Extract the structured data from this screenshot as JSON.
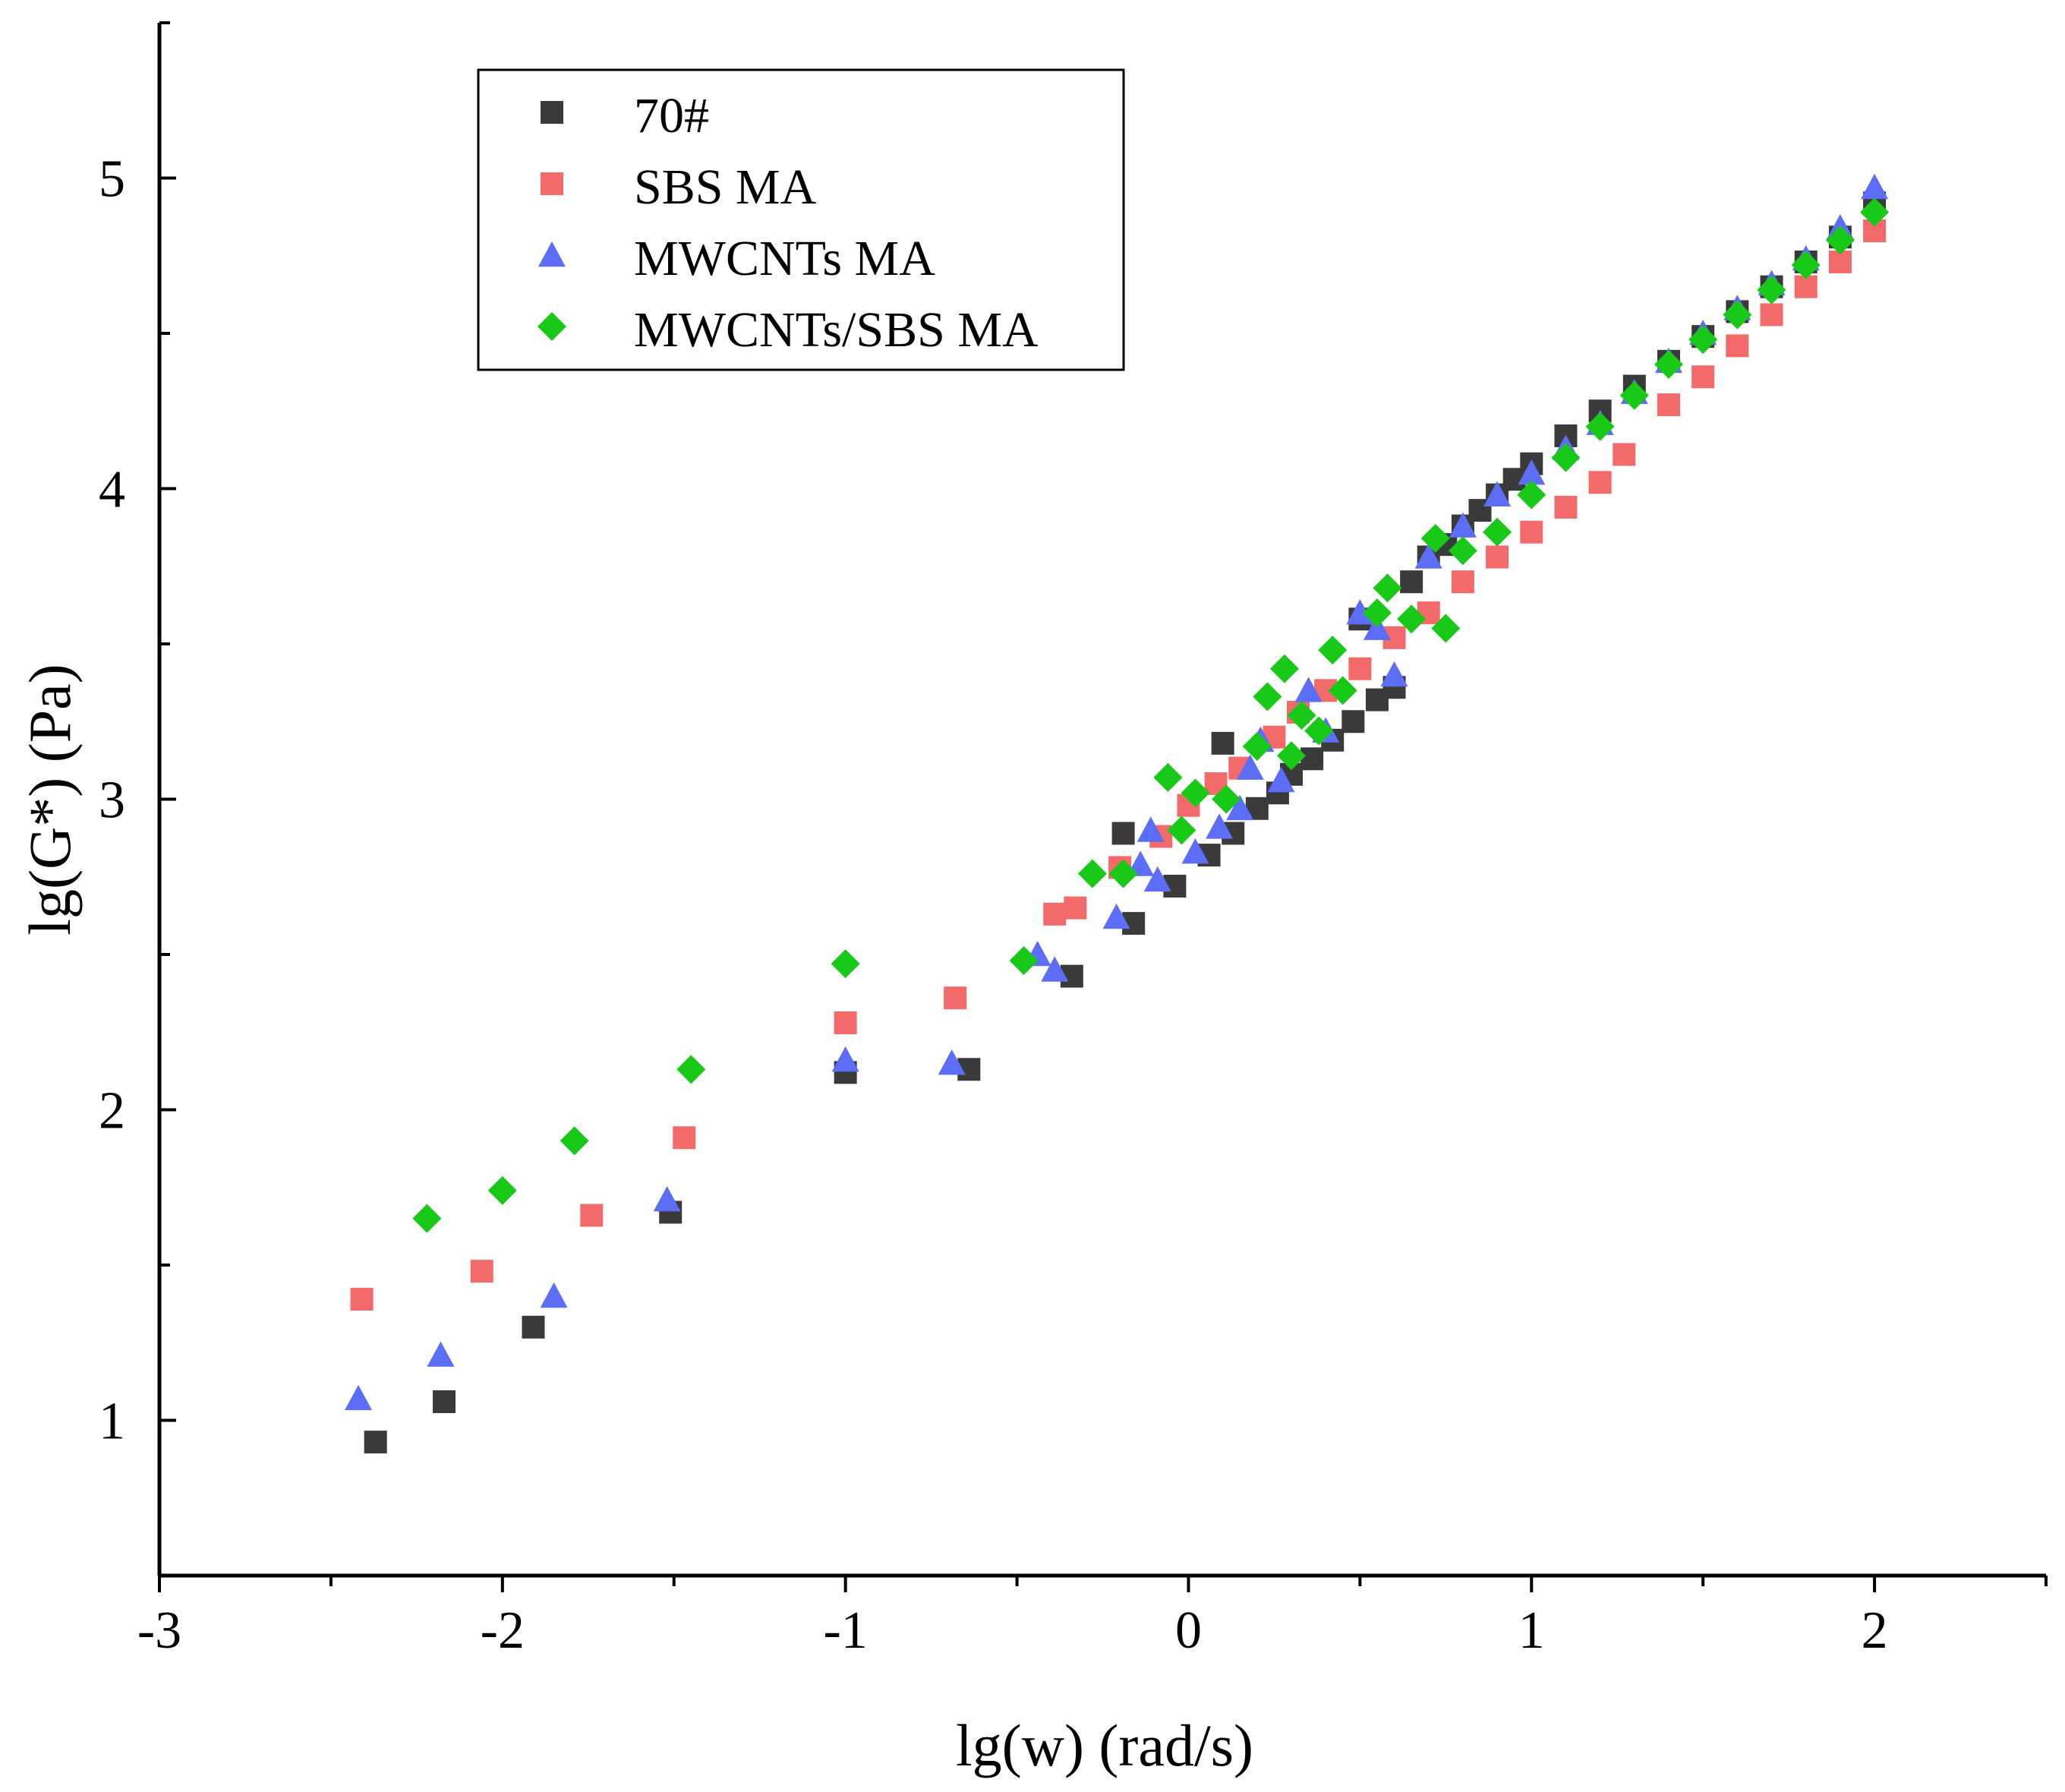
{
  "chart_data": {
    "type": "scatter",
    "xlabel": "lg(w)  (rad/s)",
    "ylabel": "lg(G*) (Pa)",
    "xlim": [
      -3,
      2.5
    ],
    "ylim": [
      0.5,
      5.5
    ],
    "xticks": [
      -3,
      -2,
      -1,
      0,
      1,
      2
    ],
    "xtick_labels": [
      "-3",
      "-2",
      "-1",
      "0",
      "1",
      "2"
    ],
    "yticks": [
      1,
      2,
      3,
      4,
      5
    ],
    "ytick_labels": [
      "1",
      "2",
      "3",
      "4",
      "5"
    ],
    "legend_position": "top-left",
    "series": [
      {
        "name": "70#",
        "marker": "square",
        "color": "#3a3a3a",
        "x": [
          -2.37,
          -2.17,
          -1.91,
          -1.51,
          -1.0,
          -0.64,
          -0.34,
          -0.16,
          -0.19,
          -0.04,
          0.06,
          0.1,
          0.13,
          0.2,
          0.26,
          0.3,
          0.36,
          0.42,
          0.48,
          0.5,
          0.55,
          0.6,
          0.65,
          0.7,
          0.75,
          0.8,
          0.85,
          0.9,
          0.95,
          1.0,
          1.1,
          1.2,
          1.3,
          1.4,
          1.5,
          1.6,
          1.7,
          1.8,
          1.9,
          2.0
        ],
        "y": [
          0.93,
          1.06,
          1.3,
          1.67,
          2.12,
          2.13,
          2.43,
          2.6,
          2.89,
          2.72,
          2.82,
          3.18,
          2.89,
          2.97,
          3.02,
          3.08,
          3.13,
          3.19,
          3.25,
          3.58,
          3.32,
          3.36,
          3.7,
          3.78,
          3.82,
          3.88,
          3.93,
          3.98,
          4.03,
          4.08,
          4.17,
          4.25,
          4.33,
          4.41,
          4.49,
          4.57,
          4.65,
          4.73,
          4.81,
          4.92
        ]
      },
      {
        "name": "SBS MA",
        "marker": "square",
        "color": "#f26a6a",
        "x": [
          -2.41,
          -2.06,
          -1.74,
          -1.47,
          -1.0,
          -0.68,
          -0.39,
          -0.33,
          -0.2,
          -0.08,
          0.0,
          0.08,
          0.15,
          0.25,
          0.32,
          0.4,
          0.5,
          0.6,
          0.7,
          0.8,
          0.9,
          1.0,
          1.1,
          1.2,
          1.27,
          1.4,
          1.5,
          1.6,
          1.7,
          1.8,
          1.9,
          2.0
        ],
        "y": [
          1.39,
          1.48,
          1.66,
          1.91,
          2.28,
          2.36,
          2.63,
          2.65,
          2.78,
          2.88,
          2.98,
          3.05,
          3.1,
          3.2,
          3.28,
          3.35,
          3.42,
          3.52,
          3.6,
          3.7,
          3.78,
          3.86,
          3.94,
          4.02,
          4.11,
          4.27,
          4.36,
          4.46,
          4.56,
          4.65,
          4.73,
          4.83
        ]
      },
      {
        "name": "MWCNTs MA",
        "marker": "triangle",
        "color": "#5b6ef5",
        "x": [
          -2.42,
          -2.18,
          -1.85,
          -1.52,
          -1.0,
          -0.69,
          -0.44,
          -0.39,
          -0.21,
          -0.14,
          -0.11,
          -0.09,
          0.02,
          0.09,
          0.15,
          0.18,
          0.21,
          0.27,
          0.35,
          0.4,
          0.5,
          0.55,
          0.6,
          0.7,
          0.8,
          0.9,
          1.0,
          1.1,
          1.2,
          1.3,
          1.4,
          1.5,
          1.6,
          1.7,
          1.8,
          1.9,
          2.0
        ],
        "y": [
          1.07,
          1.21,
          1.4,
          1.71,
          2.16,
          2.15,
          2.5,
          2.45,
          2.62,
          2.79,
          2.9,
          2.74,
          2.83,
          2.91,
          2.97,
          3.1,
          3.19,
          3.06,
          3.35,
          3.22,
          3.6,
          3.55,
          3.4,
          3.78,
          3.88,
          3.98,
          4.05,
          4.13,
          4.21,
          4.31,
          4.41,
          4.5,
          4.58,
          4.66,
          4.74,
          4.84,
          4.97
        ]
      },
      {
        "name": "MWCNTs/SBS MA",
        "marker": "diamond",
        "color": "#18c918",
        "x": [
          -2.22,
          -2.0,
          -1.79,
          -1.45,
          -1.0,
          -0.48,
          -0.28,
          -0.19,
          -0.06,
          -0.02,
          0.02,
          0.11,
          0.2,
          0.23,
          0.28,
          0.3,
          0.33,
          0.38,
          0.42,
          0.45,
          0.55,
          0.58,
          0.65,
          0.72,
          0.75,
          0.8,
          0.9,
          1.0,
          1.1,
          1.2,
          1.3,
          1.4,
          1.5,
          1.6,
          1.7,
          1.8,
          1.9,
          2.0
        ],
        "y": [
          1.65,
          1.74,
          1.9,
          2.13,
          2.47,
          2.48,
          2.76,
          2.76,
          3.07,
          2.9,
          3.02,
          3.0,
          3.17,
          3.33,
          3.42,
          3.14,
          3.27,
          3.22,
          3.48,
          3.35,
          3.6,
          3.68,
          3.58,
          3.84,
          3.55,
          3.8,
          3.86,
          3.98,
          4.1,
          4.2,
          4.3,
          4.4,
          4.48,
          4.56,
          4.64,
          4.72,
          4.8,
          4.89
        ]
      }
    ]
  }
}
